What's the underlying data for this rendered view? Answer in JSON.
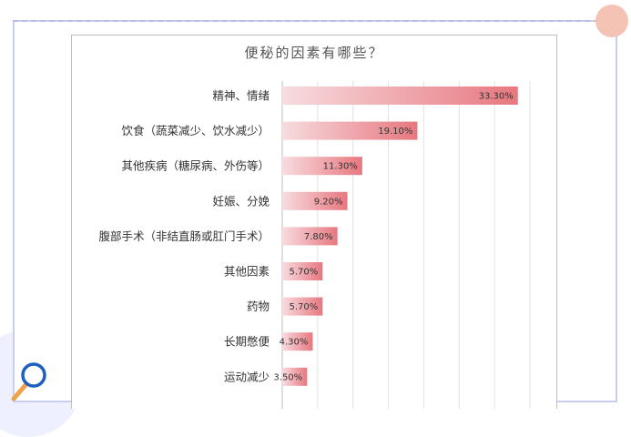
{
  "colors": {
    "bar_start": "#f7dcdf",
    "bar_end": "#e7777f",
    "frame_border": "#c9cdf0",
    "corner_dot": "#f4c3b4",
    "magnifier_ring": "#1e5fbf",
    "magnifier_handle": "#f0a24a"
  },
  "icons": {
    "corner": "magnifier-icon"
  },
  "chart_data": {
    "type": "bar",
    "orientation": "horizontal",
    "title": "便秘的因素有哪些？",
    "categories": [
      "精神、情绪",
      "饮食（蔬菜减少、饮水减少）",
      "其他疾病（糖尿病、外伤等）",
      "妊娠、分娩",
      "腹部手术（非结直肠或肛门手术）",
      "其他因素",
      "药物",
      "长期憋便",
      "运动减少"
    ],
    "values": [
      33.3,
      19.1,
      11.3,
      9.2,
      7.8,
      5.7,
      5.7,
      4.3,
      3.5
    ],
    "value_labels": [
      "33.30%",
      "19.10%",
      "11.30%",
      "9.20%",
      "7.80%",
      "5.70%",
      "5.70%",
      "4.30%",
      "3.50%"
    ],
    "xlim": [
      0,
      35
    ],
    "grid": true,
    "legend": "none"
  }
}
